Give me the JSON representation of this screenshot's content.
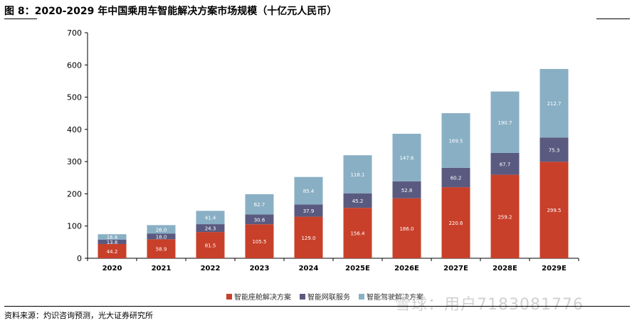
{
  "title": "图 8：2020-2029 年中国乘用车智能解决方案市场规模（十亿元人民币）",
  "source": "资料来源：灼识咨询预测，光大证券研究所",
  "watermark": "雪球：用户7183081776",
  "colors": {
    "cockpit": "#c8402a",
    "connected": "#5a5a80",
    "driving": "#89afc4",
    "axis": "#000000",
    "label_light": "#ffffff"
  },
  "chart_data": {
    "type": "bar",
    "stacked": true,
    "title": "2020-2029 年中国乘用车智能解决方案市场规模（十亿元人民币）",
    "xlabel": "",
    "ylabel": "",
    "ylim": [
      0,
      700
    ],
    "yticks": [
      0,
      100,
      200,
      300,
      400,
      500,
      600,
      700
    ],
    "grid": false,
    "legend_position": "bottom",
    "categories": [
      "2020",
      "2021",
      "2022",
      "2023",
      "2024",
      "2025E",
      "2026E",
      "2027E",
      "2028E",
      "2029E"
    ],
    "series": [
      {
        "name": "智能座舱解决方案",
        "color_key": "cockpit",
        "values": [
          44.2,
          58.9,
          81.5,
          105.5,
          129.0,
          156.4,
          186.0,
          220.6,
          259.2,
          299.5
        ]
      },
      {
        "name": "智能网联服务",
        "color_key": "connected",
        "values": [
          13.8,
          18.0,
          24.3,
          30.6,
          37.9,
          45.2,
          52.8,
          60.2,
          67.7,
          75.3
        ]
      },
      {
        "name": "智能驾驶解决方案",
        "color_key": "driving",
        "values": [
          16.6,
          26.0,
          41.4,
          62.7,
          85.4,
          118.1,
          147.6,
          169.5,
          190.7,
          212.7
        ]
      }
    ]
  }
}
